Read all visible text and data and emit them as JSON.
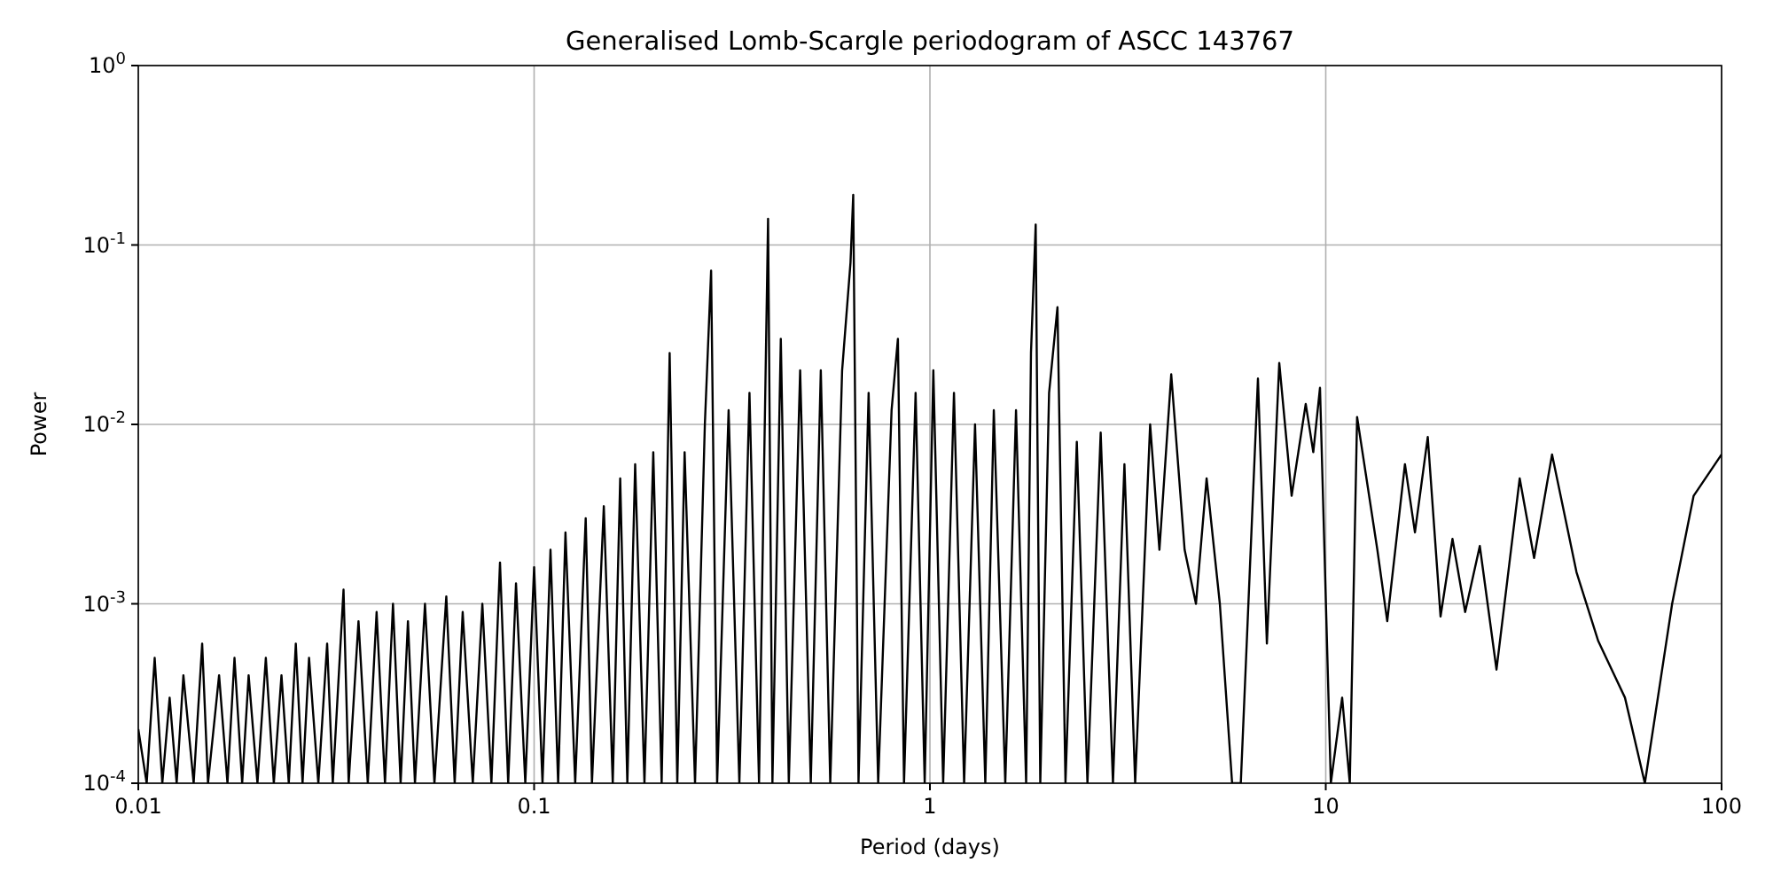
{
  "chart_data": {
    "type": "line",
    "title": "Generalised Lomb-Scargle periodogram of ASCC 143767",
    "xlabel": "Period (days)",
    "ylabel": "Power",
    "log": "xy",
    "grid": true,
    "xlim": [
      0.01,
      100
    ],
    "ylim": [
      0.0001,
      1
    ],
    "xticks": [
      0.01,
      0.1,
      1,
      10,
      100
    ],
    "yticks": [
      {
        "value": 0.0001,
        "label": "10$^{-4}$"
      },
      {
        "value": 0.001,
        "label": "10$^{-3}$"
      },
      {
        "value": 0.01,
        "label": "10$^{-2}$"
      },
      {
        "value": 0.1,
        "label": "10$^{-1}$"
      },
      {
        "value": 1,
        "label": "10$^{0}$"
      }
    ],
    "series": [
      {
        "color": "#000000",
        "x": [
          0.01,
          0.0105,
          0.011,
          0.0115,
          0.012,
          0.0125,
          0.013,
          0.0138,
          0.0145,
          0.015,
          0.016,
          0.0168,
          0.0175,
          0.0183,
          0.019,
          0.02,
          0.021,
          0.022,
          0.023,
          0.024,
          0.025,
          0.026,
          0.027,
          0.0285,
          0.03,
          0.031,
          0.033,
          0.034,
          0.036,
          0.038,
          0.04,
          0.042,
          0.044,
          0.046,
          0.048,
          0.05,
          0.053,
          0.056,
          0.06,
          0.063,
          0.066,
          0.07,
          0.074,
          0.078,
          0.082,
          0.086,
          0.09,
          0.095,
          0.1,
          0.105,
          0.11,
          0.115,
          0.12,
          0.127,
          0.135,
          0.14,
          0.15,
          0.158,
          0.165,
          0.172,
          0.18,
          0.19,
          0.2,
          0.21,
          0.22,
          0.23,
          0.24,
          0.255,
          0.27,
          0.28,
          0.29,
          0.31,
          0.33,
          0.35,
          0.37,
          0.39,
          0.4,
          0.42,
          0.44,
          0.47,
          0.5,
          0.53,
          0.56,
          0.6,
          0.63,
          0.64,
          0.66,
          0.7,
          0.74,
          0.8,
          0.83,
          0.86,
          0.92,
          0.97,
          1.02,
          1.08,
          1.15,
          1.22,
          1.3,
          1.38,
          1.45,
          1.55,
          1.65,
          1.75,
          1.8,
          1.85,
          1.9,
          2.0,
          2.1,
          2.2,
          2.35,
          2.5,
          2.7,
          2.9,
          3.1,
          3.3,
          3.6,
          3.8,
          4.07,
          4.4,
          4.7,
          5.0,
          5.4,
          5.8,
          6.1,
          6.74,
          7.1,
          7.63,
          8.2,
          8.9,
          9.3,
          9.67,
          10.3,
          11.0,
          11.5,
          12.0,
          13.5,
          14.3,
          15.85,
          16.8,
          18.1,
          19.5,
          20.9,
          22.5,
          24.5,
          27,
          30.9,
          33.6,
          37.3,
          43,
          48.8,
          57,
          64,
          75,
          85,
          100
        ],
        "values": [
          0.0002,
          0.0001,
          0.0005,
          0.0001,
          0.0003,
          0.0001,
          0.0004,
          0.0001,
          0.0006,
          0.0001,
          0.0004,
          0.0001,
          0.0005,
          0.0001,
          0.0004,
          0.0001,
          0.0005,
          0.0001,
          0.0004,
          0.0001,
          0.0006,
          0.0001,
          0.0005,
          0.0001,
          0.0006,
          0.0001,
          0.0012,
          0.0001,
          0.0008,
          0.0001,
          0.0009,
          0.0001,
          0.001,
          0.0001,
          0.0008,
          0.0001,
          0.001,
          0.0001,
          0.0011,
          0.0001,
          0.0009,
          0.0001,
          0.001,
          0.0001,
          0.0017,
          0.0001,
          0.0013,
          0.0001,
          0.0016,
          0.0001,
          0.002,
          0.0001,
          0.0025,
          0.0001,
          0.003,
          0.0001,
          0.0035,
          0.0001,
          0.005,
          0.0001,
          0.006,
          0.0001,
          0.007,
          0.0001,
          0.025,
          0.0001,
          0.007,
          0.0001,
          0.01,
          0.072,
          0.0001,
          0.012,
          0.0001,
          0.015,
          0.0001,
          0.14,
          0.0001,
          0.03,
          0.0001,
          0.02,
          0.0001,
          0.02,
          0.0001,
          0.02,
          0.08,
          0.19,
          0.0001,
          0.015,
          0.0001,
          0.012,
          0.03,
          0.0001,
          0.015,
          0.0001,
          0.02,
          0.0001,
          0.015,
          0.0001,
          0.01,
          0.0001,
          0.012,
          0.0001,
          0.012,
          0.0001,
          0.025,
          0.13,
          0.0001,
          0.015,
          0.045,
          0.0001,
          0.008,
          0.0001,
          0.009,
          0.0001,
          0.006,
          0.0001,
          0.01,
          0.002,
          0.019,
          0.002,
          0.001,
          0.005,
          0.001,
          0.0001,
          0.0001,
          0.018,
          0.0006,
          0.022,
          0.004,
          0.013,
          0.007,
          0.016,
          0.0001,
          0.0003,
          0.0001,
          0.011,
          0.002,
          0.0008,
          0.006,
          0.0025,
          0.0085,
          0.00085,
          0.0023,
          0.0009,
          0.0021,
          0.00043,
          0.005,
          0.0018,
          0.0068,
          0.0015,
          0.00062,
          0.0003,
          0.0001,
          0.001,
          0.004,
          0.0068
        ]
      }
    ]
  }
}
